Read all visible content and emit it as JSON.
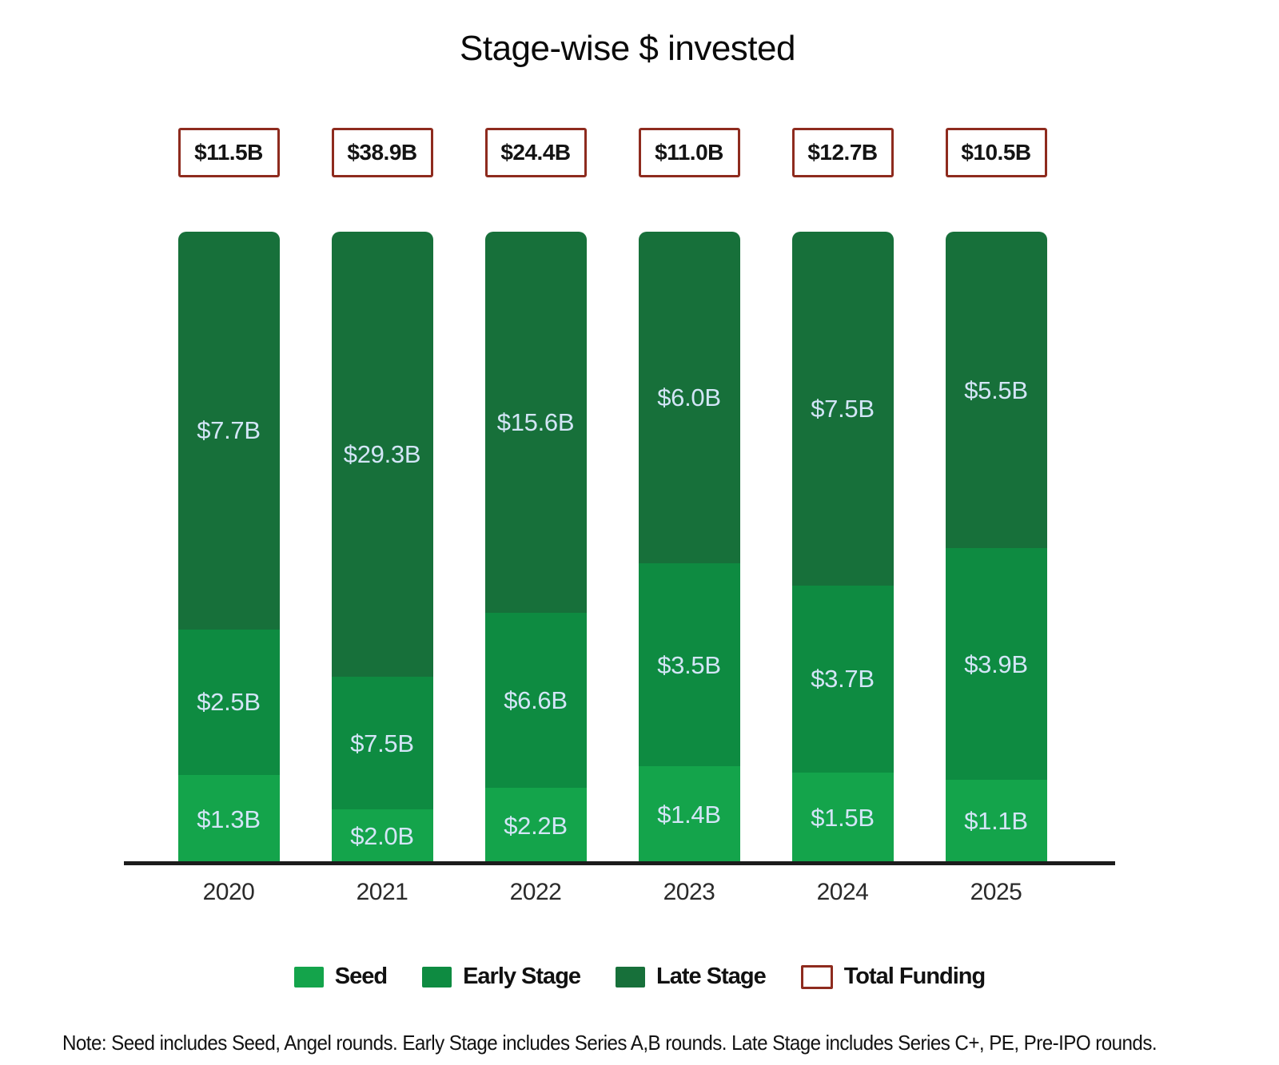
{
  "chart_data": {
    "type": "bar",
    "variant": "stacked-column-equal-height",
    "title": "Stage-wise $ invested",
    "unit": "USD billions",
    "categories": [
      "2020",
      "2021",
      "2022",
      "2023",
      "2024",
      "2025"
    ],
    "series": [
      {
        "name": "Seed",
        "color": "#14a44b",
        "values": [
          1.3,
          2.0,
          2.2,
          1.4,
          1.5,
          1.1
        ],
        "labels": [
          "$1.3B",
          "$2.0B",
          "$2.2B",
          "$1.4B",
          "$1.5B",
          "$1.1B"
        ]
      },
      {
        "name": "Early Stage",
        "color": "#0e8b41",
        "values": [
          2.5,
          7.5,
          6.6,
          3.5,
          3.7,
          3.9
        ],
        "labels": [
          "$2.5B",
          "$7.5B",
          "$6.6B",
          "$3.5B",
          "$3.7B",
          "$3.9B"
        ]
      },
      {
        "name": "Late Stage",
        "color": "#17703a",
        "values": [
          7.7,
          29.3,
          15.6,
          6.0,
          7.5,
          5.5
        ],
        "labels": [
          "$7.7B",
          "$29.3B",
          "$15.6B",
          "$6.0B",
          "$7.5B",
          "$5.5B"
        ]
      }
    ],
    "totals": {
      "name": "Total Funding",
      "values": [
        11.5,
        38.9,
        24.4,
        11.0,
        12.7,
        10.5
      ],
      "labels": [
        "$11.5B",
        "$38.9B",
        "$24.4B",
        "$11.0B",
        "$12.7B",
        "$10.5B"
      ]
    },
    "legend": [
      "Seed",
      "Early Stage",
      "Late Stage",
      "Total Funding"
    ],
    "legend_position": "bottom",
    "grid": false,
    "equal_height_bars": true,
    "stack_order_top_to_bottom": [
      "Late Stage",
      "Early Stage",
      "Seed"
    ],
    "note": "Note: Seed includes Seed, Angel rounds. Early Stage includes Series A,B rounds. Late Stage includes Series C+, PE, Pre-IPO rounds.",
    "colors": {
      "seed": "#14a44b",
      "early_stage": "#0e8b41",
      "late_stage": "#17703a",
      "total_border": "#8e2b1e",
      "value_label": "#d3e5f7",
      "axis": "#1c1c1c",
      "text": "#111111"
    }
  }
}
